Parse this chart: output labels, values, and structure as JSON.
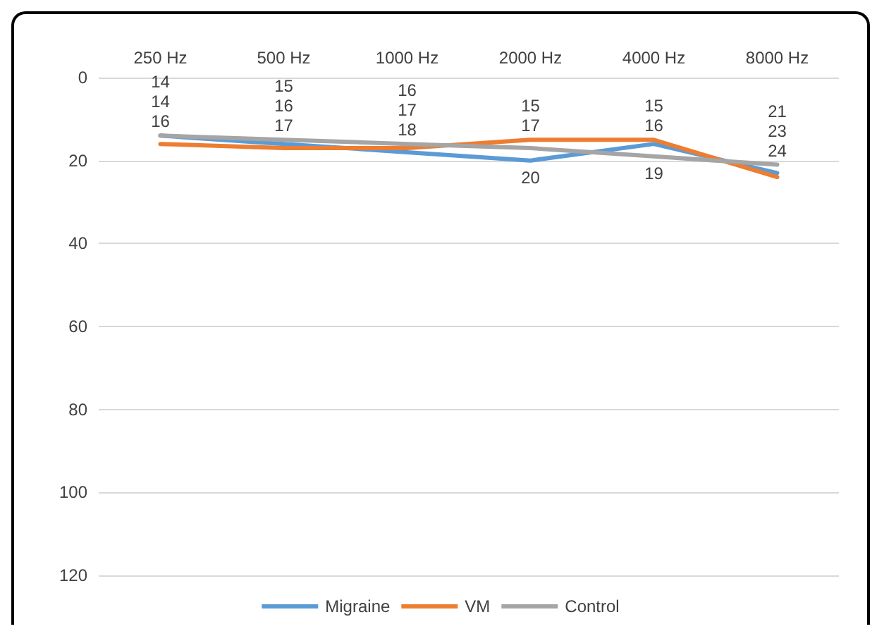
{
  "chart_data": {
    "type": "line",
    "categories": [
      "250 Hz",
      "500 Hz",
      "1000 Hz",
      "2000 Hz",
      "4000 Hz",
      "8000 Hz"
    ],
    "series": [
      {
        "name": "Migraine",
        "color": "#5b9bd5",
        "values": [
          14,
          16,
          18,
          20,
          16,
          23
        ]
      },
      {
        "name": "VM",
        "color": "#ed7d31",
        "values": [
          16,
          17,
          17,
          15,
          15,
          24
        ]
      },
      {
        "name": "Control",
        "color": "#a5a5a5",
        "values": [
          14,
          15,
          16,
          17,
          19,
          21
        ]
      }
    ],
    "ylim": [
      120,
      0
    ],
    "yticks": [
      0,
      20,
      40,
      60,
      80,
      100,
      120
    ],
    "grid": "y",
    "legend": "bottom",
    "data_labels": true,
    "marker": "none",
    "line_style": "solid"
  }
}
